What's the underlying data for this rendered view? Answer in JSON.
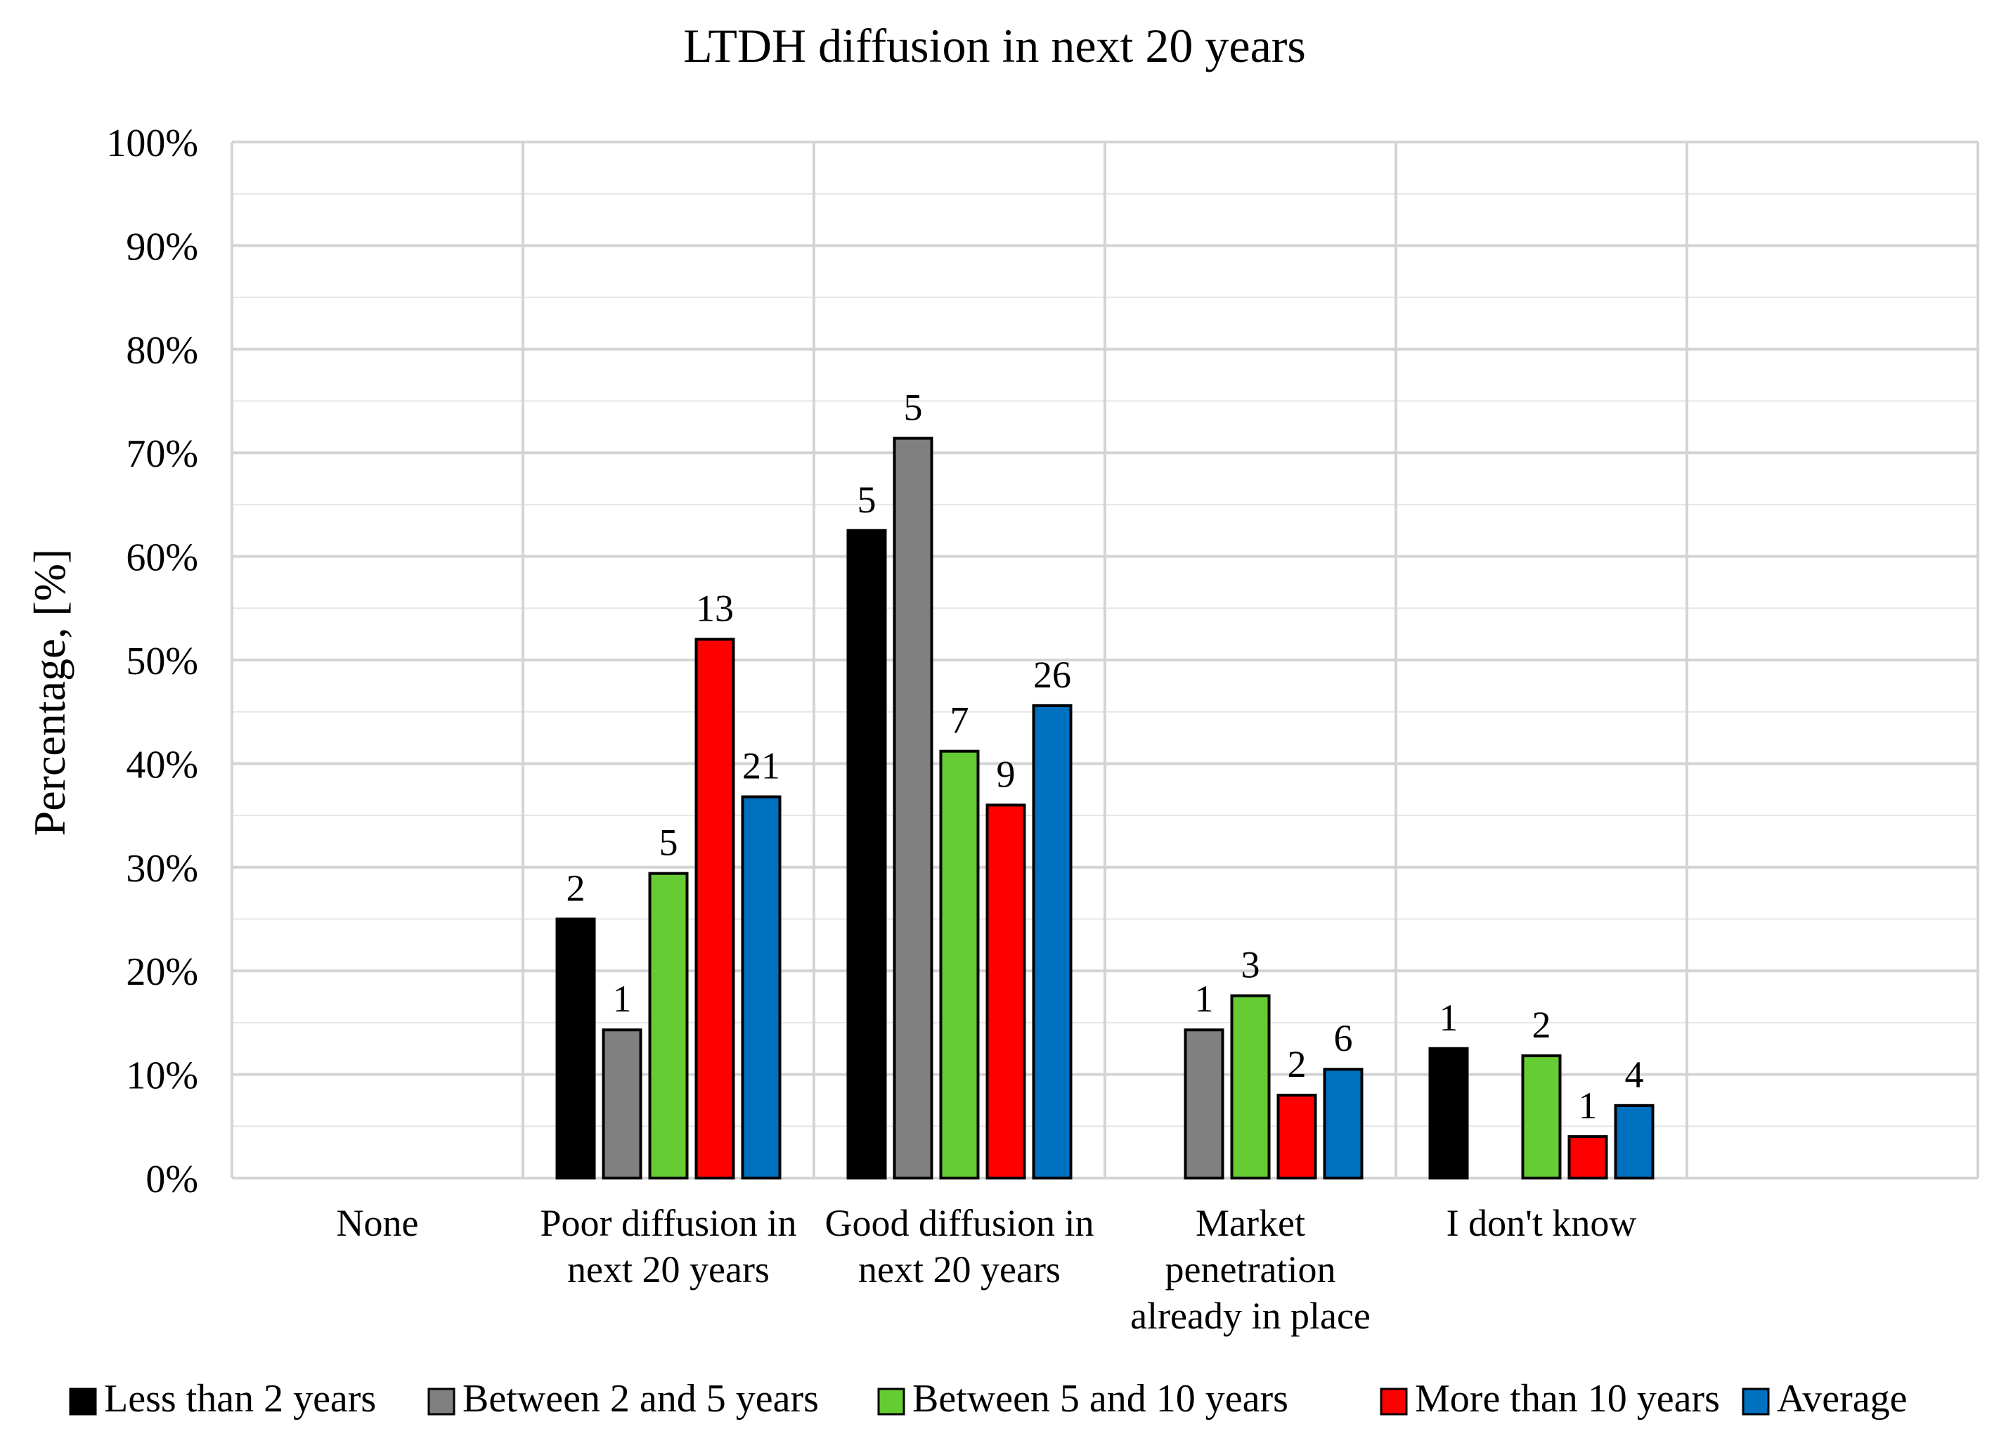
{
  "chart_data": {
    "type": "bar",
    "title": "LTDH  diffusion in next 20 years",
    "xlabel": "",
    "ylabel": "Percentage,  [%]",
    "ylim": [
      0,
      100
    ],
    "y_ticks": [
      "0%",
      "10%",
      "20%",
      "30%",
      "40%",
      "50%",
      "60%",
      "70%",
      "80%",
      "90%",
      "100%"
    ],
    "grid": true,
    "legend_position": "bottom",
    "categories": [
      [
        "None"
      ],
      [
        "Poor diffusion in",
        "next 20 years"
      ],
      [
        "Good diffusion in",
        "next 20 years"
      ],
      [
        "Market",
        "penetration",
        "already in place"
      ],
      [
        "I don't know"
      ],
      [
        ""
      ]
    ],
    "series": [
      {
        "name": "Less than 2 years",
        "color": "#000000",
        "values": [
          null,
          25,
          62.5,
          null,
          12.5,
          null
        ],
        "labels": [
          "",
          "2",
          "5",
          "",
          "1",
          ""
        ]
      },
      {
        "name": "Between 2 and 5 years",
        "color": "#808080",
        "values": [
          null,
          14.3,
          71.4,
          14.3,
          null,
          null
        ],
        "labels": [
          "",
          "1",
          "5",
          "1",
          "",
          ""
        ]
      },
      {
        "name": "Between 5 and 10 years",
        "color": "#66cc33",
        "values": [
          null,
          29.4,
          41.2,
          17.6,
          11.8,
          null
        ],
        "labels": [
          "",
          "5",
          "7",
          "3",
          "2",
          ""
        ]
      },
      {
        "name": "More than 10 years",
        "color": "#ff0000",
        "values": [
          null,
          52,
          36,
          8,
          4,
          null
        ],
        "labels": [
          "",
          "13",
          "9",
          "2",
          "1",
          ""
        ]
      },
      {
        "name": "Average",
        "color": "#0070c0",
        "values": [
          null,
          36.8,
          45.6,
          10.5,
          7,
          null
        ],
        "labels": [
          "",
          "21",
          "26",
          "6",
          "4",
          ""
        ]
      }
    ]
  }
}
